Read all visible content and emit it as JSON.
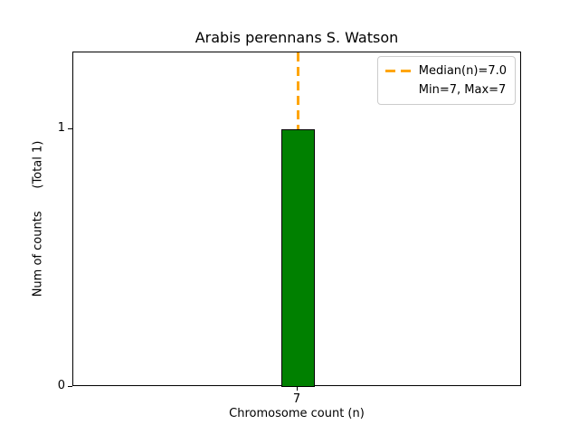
{
  "chart_data": {
    "type": "bar",
    "title": "Arabis perennans S. Watson",
    "xlabel": "Chromosome count (n)",
    "ylabel": "Num of counts      (Total 1)",
    "categories": [
      "7"
    ],
    "values": [
      1
    ],
    "total": 1,
    "xticks": [
      "7"
    ],
    "yticks": [
      0,
      1
    ],
    "ylim": [
      0,
      1.3
    ],
    "grid": false,
    "bar_color": "#008000",
    "bar_edge_color": "#000000",
    "median_line": {
      "value": 7.0,
      "color": "#FFA500",
      "style": "dashed",
      "at_category_index": 0
    },
    "legend": {
      "position": "upper right",
      "entries": [
        {
          "label": "Median(n)=7.0",
          "marker": "dashed-line",
          "marker_color": "#FFA500"
        },
        {
          "label": "Min=7, Max=7",
          "marker": "none",
          "marker_color": ""
        }
      ]
    }
  }
}
